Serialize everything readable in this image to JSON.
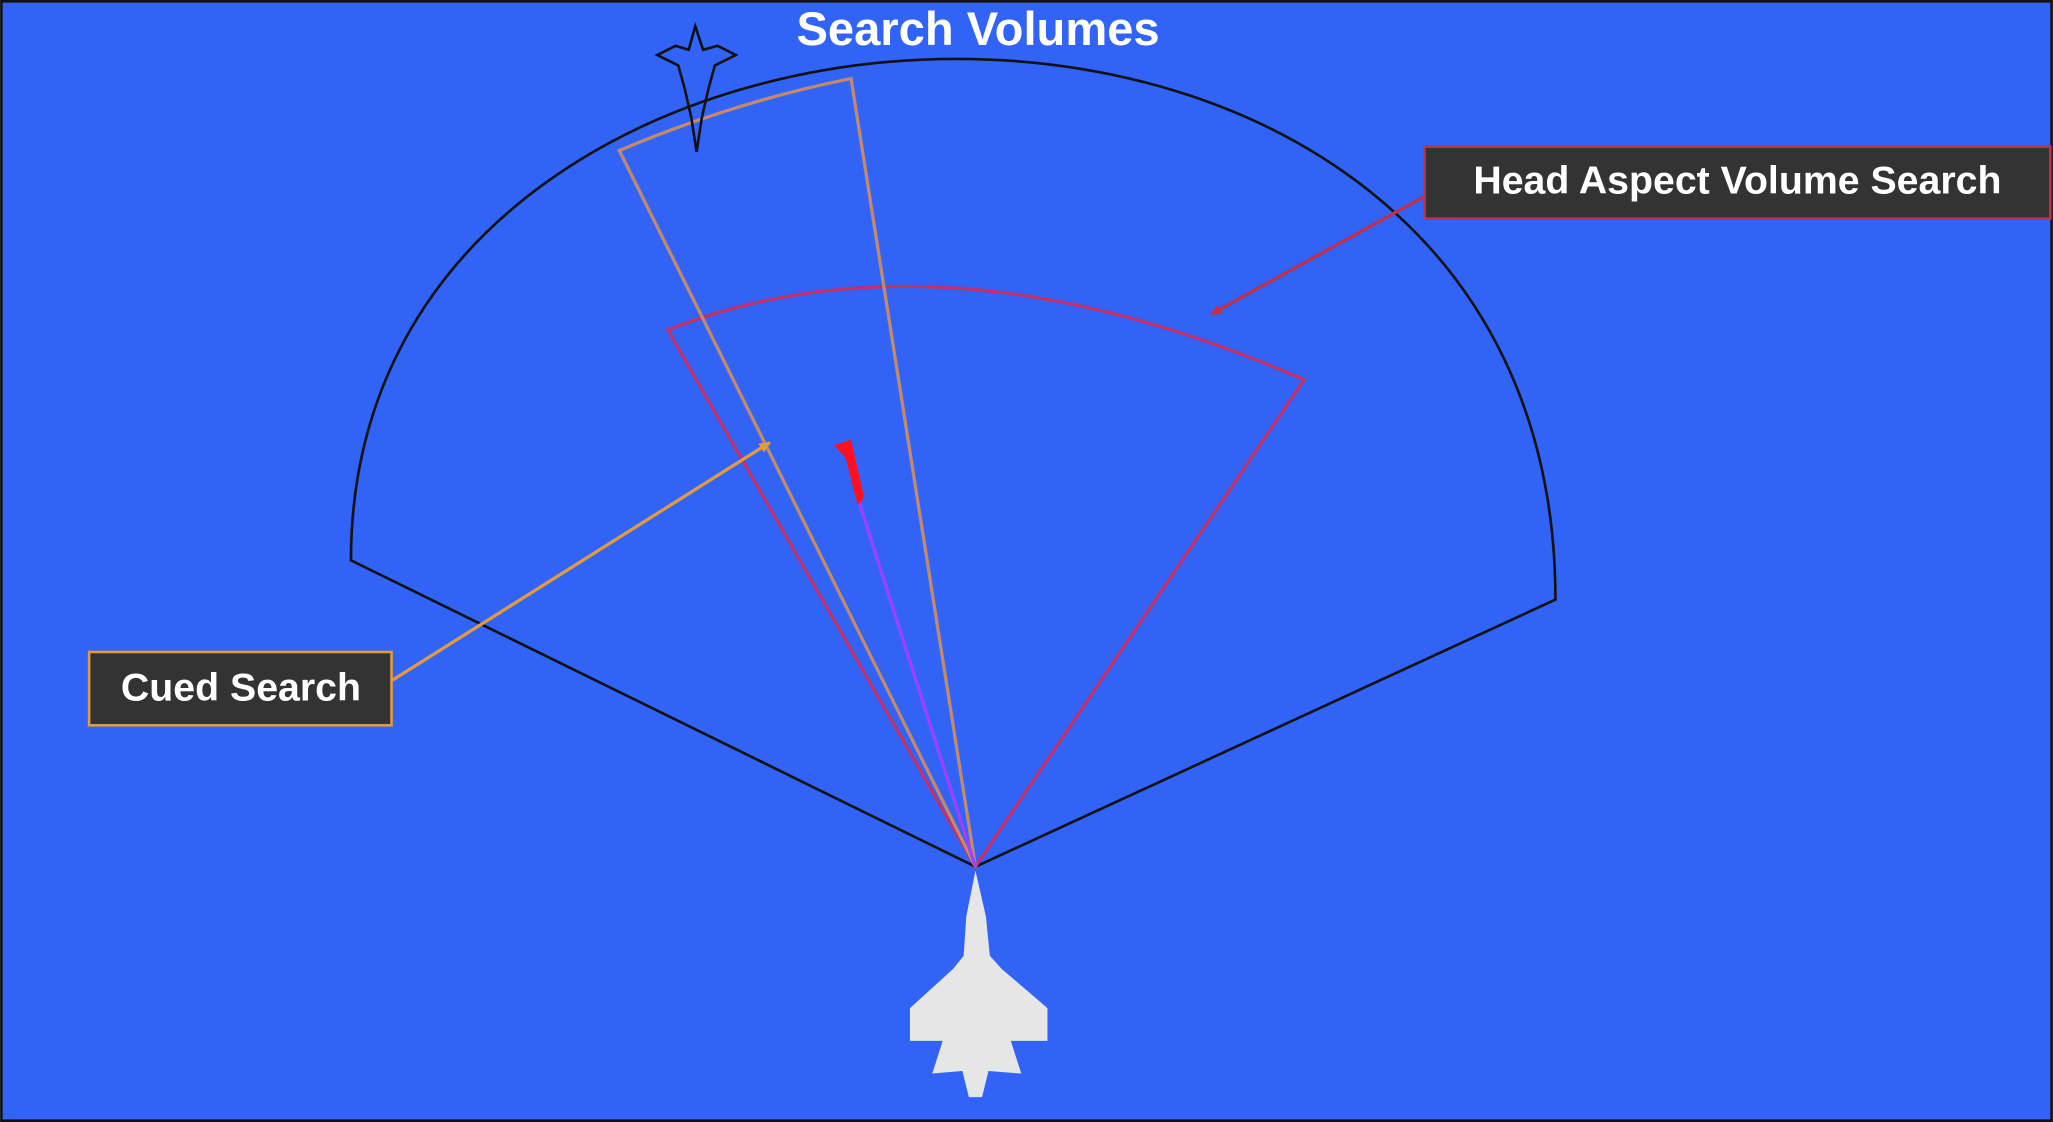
{
  "title": "Search Volumes",
  "labels": {
    "head_aspect": "Head Aspect Volume Search",
    "cued": "Cued Search"
  }
}
